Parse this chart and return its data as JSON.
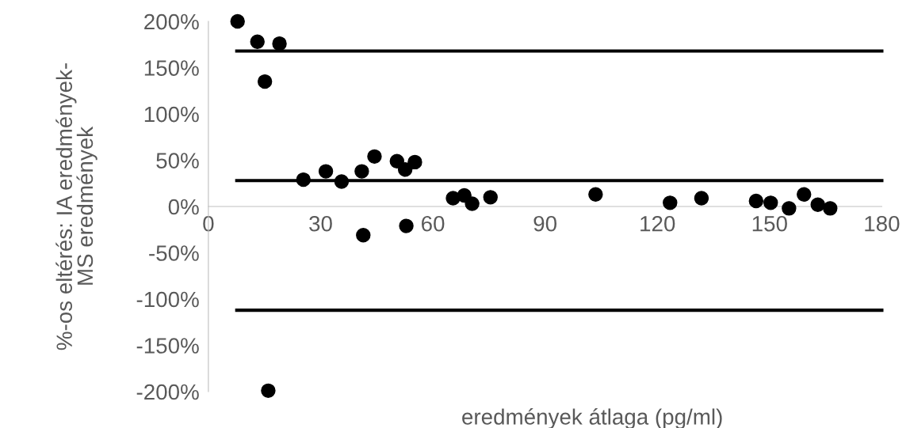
{
  "chart_data": {
    "type": "scatter",
    "xlabel": "eredmények átlaga (pg/ml)",
    "ylabel": "%-os eltérés: IA eredmények-\nMS eredmények",
    "xlim": [
      0,
      180
    ],
    "xticks": [
      0,
      30,
      60,
      90,
      120,
      150,
      180
    ],
    "ylim": [
      -200,
      200
    ],
    "yticks": [
      {
        "value": -200,
        "label": "-200%"
      },
      {
        "value": -150,
        "label": "-150%"
      },
      {
        "value": -100,
        "label": "-100%"
      },
      {
        "value": -50,
        "label": "-50%"
      },
      {
        "value": 0,
        "label": "0%"
      },
      {
        "value": 50,
        "label": "50%"
      },
      {
        "value": 100,
        "label": "100%"
      },
      {
        "value": 150,
        "label": "150%"
      },
      {
        "value": 200,
        "label": "200%"
      }
    ],
    "grid": false,
    "legend": false,
    "series": [
      {
        "color": "#000000",
        "marker": "circle",
        "x": [
          7.8,
          13.1,
          19.0,
          15.1,
          25.4,
          31.4,
          35.6,
          41.0,
          44.4,
          50.4,
          52.6,
          55.2,
          41.4,
          52.9,
          16.0,
          65.4,
          68.4,
          70.5,
          75.4,
          103.5,
          123.4,
          131.8,
          146.4,
          150.3,
          155.2,
          159.2,
          162.9,
          166.2
        ],
        "values": [
          200,
          178,
          176,
          135,
          29,
          38,
          27,
          38,
          54,
          49,
          40,
          48,
          -31,
          -21,
          -199,
          9,
          12,
          3,
          10,
          13,
          4,
          9,
          6,
          4,
          -2,
          13,
          2,
          -2
        ]
      },
      {
        "type": "line",
        "color": "#000000",
        "marker": "none",
        "line_style": "solid",
        "x": [
          7.6,
          180
        ],
        "values": [
          168,
          168
        ]
      },
      {
        "type": "line",
        "color": "#000000",
        "marker": "none",
        "line_style": "solid",
        "x": [
          7.6,
          180
        ],
        "values": [
          28,
          28
        ]
      },
      {
        "type": "line",
        "color": "#000000",
        "marker": "none",
        "line_style": "solid",
        "x": [
          7.6,
          180
        ],
        "values": [
          -112,
          -112
        ]
      }
    ]
  }
}
